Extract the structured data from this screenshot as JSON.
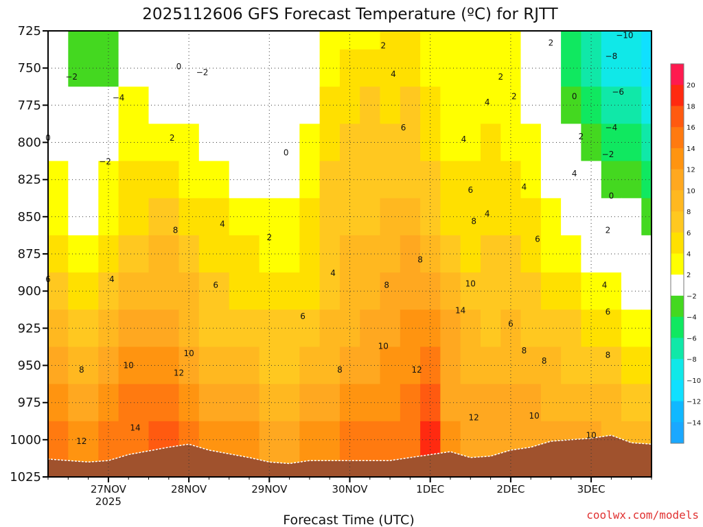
{
  "chart_data": {
    "type": "heatmap",
    "title": "2025112606 GFS Forecast Temperature (ºC) for RJTT",
    "xlabel": "Forecast Time (UTC)",
    "ylabel": "",
    "credit": "coolwx.com/models",
    "y_levels": [
      725,
      750,
      775,
      800,
      825,
      850,
      875,
      900,
      925,
      950,
      975,
      1000,
      1025
    ],
    "ylim": [
      1025,
      725
    ],
    "x_ticks": [
      {
        "label": "27NOV",
        "sub": "2025",
        "hour": 18
      },
      {
        "label": "28NOV",
        "sub": "",
        "hour": 42
      },
      {
        "label": "29NOV",
        "sub": "",
        "hour": 66
      },
      {
        "label": "30NOV",
        "sub": "",
        "hour": 90
      },
      {
        "label": "1DEC",
        "sub": "",
        "hour": 114
      },
      {
        "label": "2DEC",
        "sub": "",
        "hour": 138
      },
      {
        "label": "3DEC",
        "sub": "",
        "hour": 162
      }
    ],
    "xlim_hours": [
      0,
      180
    ],
    "colorbar": {
      "labels": [
        "20",
        "18",
        "16",
        "14",
        "12",
        "10",
        "8",
        "6",
        "4",
        "2",
        "−2",
        "−4",
        "−6",
        "−8",
        "−10",
        "−12",
        "−14"
      ],
      "colors": [
        "#ff1a4f",
        "#ff2a10",
        "#ff5a10",
        "#ff7a10",
        "#ff9410",
        "#ffa820",
        "#ffb820",
        "#ffc820",
        "#ffe000",
        "#ffff00",
        "#ffffff",
        "#44d820",
        "#10e860",
        "#10e8a8",
        "#10e8e8",
        "#10e0ff",
        "#10b8ff",
        "#1aa8ff"
      ]
    },
    "x_hours": [
      0,
      12,
      18,
      24,
      36,
      42,
      48,
      60,
      66,
      72,
      78,
      84,
      90,
      96,
      102,
      108,
      114,
      120,
      126,
      132,
      138,
      144,
      150,
      156,
      162,
      168,
      174,
      180
    ],
    "surface_pressure": [
      1013,
      1015,
      1014,
      1010,
      1005,
      1003,
      1007,
      1012,
      1015,
      1016,
      1014,
      1014,
      1014,
      1014,
      1014,
      1012,
      1010,
      1008,
      1012,
      1011,
      1007,
      1005,
      1001,
      1000,
      999,
      997,
      1002,
      1003
    ],
    "temperature": [
      [
        -2,
        -4,
        -4,
        0,
        -2,
        -2,
        -2,
        -2,
        -2,
        -2,
        0,
        2,
        2,
        2,
        4,
        4,
        2,
        2,
        2,
        2,
        2,
        0,
        -2,
        -6,
        -8,
        -10,
        -10,
        -12
      ],
      [
        -2,
        -4,
        -4,
        0,
        -2,
        0,
        -2,
        -2,
        -2,
        -2,
        0,
        2,
        4,
        4,
        4,
        4,
        2,
        2,
        2,
        2,
        2,
        0,
        -2,
        -6,
        -8,
        -10,
        -10,
        -12
      ],
      [
        0,
        -2,
        -2,
        2,
        0,
        0,
        -2,
        -2,
        -2,
        -2,
        0,
        4,
        4,
        6,
        4,
        6,
        4,
        2,
        2,
        2,
        2,
        0,
        -2,
        -4,
        -6,
        -8,
        -8,
        -10
      ],
      [
        0,
        -2,
        0,
        2,
        2,
        2,
        0,
        0,
        0,
        0,
        2,
        4,
        6,
        6,
        6,
        6,
        4,
        2,
        2,
        4,
        2,
        2,
        0,
        -2,
        -4,
        -6,
        -6,
        -8
      ],
      [
        2,
        0,
        2,
        4,
        4,
        2,
        2,
        0,
        0,
        0,
        2,
        6,
        6,
        6,
        6,
        6,
        6,
        4,
        4,
        4,
        4,
        2,
        0,
        0,
        -2,
        -4,
        -4,
        -6
      ],
      [
        2,
        0,
        2,
        4,
        6,
        4,
        4,
        2,
        2,
        2,
        4,
        6,
        6,
        6,
        8,
        8,
        6,
        4,
        4,
        4,
        4,
        4,
        2,
        0,
        0,
        -2,
        -2,
        -4
      ],
      [
        4,
        2,
        4,
        6,
        8,
        6,
        4,
        4,
        2,
        2,
        4,
        6,
        8,
        8,
        8,
        10,
        8,
        6,
        4,
        6,
        6,
        4,
        2,
        2,
        0,
        0,
        -2,
        -2
      ],
      [
        6,
        4,
        6,
        8,
        8,
        8,
        6,
        4,
        4,
        4,
        4,
        6,
        8,
        8,
        10,
        10,
        10,
        8,
        6,
        6,
        6,
        6,
        4,
        4,
        2,
        2,
        0,
        0
      ],
      [
        8,
        6,
        8,
        10,
        10,
        8,
        6,
        6,
        6,
        6,
        6,
        8,
        8,
        10,
        10,
        12,
        12,
        10,
        8,
        6,
        8,
        6,
        6,
        6,
        4,
        4,
        2,
        2
      ],
      [
        10,
        8,
        10,
        12,
        12,
        10,
        8,
        8,
        6,
        6,
        8,
        8,
        10,
        10,
        12,
        12,
        14,
        10,
        8,
        8,
        8,
        8,
        8,
        6,
        6,
        6,
        4,
        4
      ],
      [
        12,
        10,
        12,
        14,
        14,
        12,
        10,
        10,
        8,
        8,
        10,
        10,
        12,
        12,
        12,
        14,
        16,
        10,
        10,
        10,
        10,
        10,
        8,
        8,
        8,
        8,
        6,
        6
      ],
      [
        14,
        12,
        14,
        14,
        16,
        14,
        12,
        12,
        10,
        10,
        12,
        12,
        14,
        14,
        14,
        14,
        18,
        12,
        10,
        10,
        10,
        10,
        10,
        10,
        10,
        8,
        8,
        8
      ],
      [
        14,
        12,
        14,
        14,
        16,
        14,
        12,
        12,
        10,
        10,
        12,
        12,
        14,
        14,
        14,
        14,
        18,
        12,
        10,
        10,
        10,
        10,
        10,
        10,
        10,
        8,
        8,
        8
      ]
    ],
    "contour_labels": [
      {
        "text": "2",
        "hour": 100,
        "p": 735
      },
      {
        "text": "2",
        "hour": 150,
        "p": 733
      },
      {
        "text": "-10",
        "hour": 172,
        "p": 728
      },
      {
        "text": "2",
        "hour": 135,
        "p": 756
      },
      {
        "text": "-2",
        "hour": 7,
        "p": 756
      },
      {
        "text": "-4",
        "hour": 21,
        "p": 770
      },
      {
        "text": "0",
        "hour": 39,
        "p": 749
      },
      {
        "text": "-2",
        "hour": 46,
        "p": 753
      },
      {
        "text": "4",
        "hour": 103,
        "p": 754
      },
      {
        "text": "2",
        "hour": 139,
        "p": 769
      },
      {
        "text": "0",
        "hour": 157,
        "p": 769
      },
      {
        "text": "-8",
        "hour": 168,
        "p": 742
      },
      {
        "text": "-6",
        "hour": 170,
        "p": 766
      },
      {
        "text": "4",
        "hour": 131,
        "p": 773
      },
      {
        "text": "-4",
        "hour": 168,
        "p": 790
      },
      {
        "text": "6",
        "hour": 106,
        "p": 790
      },
      {
        "text": "0",
        "hour": 0,
        "p": 797
      },
      {
        "text": "2",
        "hour": 37,
        "p": 797
      },
      {
        "text": "4",
        "hour": 124,
        "p": 798
      },
      {
        "text": "2",
        "hour": 159,
        "p": 796
      },
      {
        "text": "-2",
        "hour": 17,
        "p": 813
      },
      {
        "text": "0",
        "hour": 71,
        "p": 807
      },
      {
        "text": "-2",
        "hour": 167,
        "p": 808
      },
      {
        "text": "4",
        "hour": 157,
        "p": 821
      },
      {
        "text": "4",
        "hour": 142,
        "p": 830
      },
      {
        "text": "6",
        "hour": 126,
        "p": 832
      },
      {
        "text": "0",
        "hour": 168,
        "p": 836
      },
      {
        "text": "4",
        "hour": 52,
        "p": 855
      },
      {
        "text": "8",
        "hour": 38,
        "p": 859
      },
      {
        "text": "8",
        "hour": 127,
        "p": 853
      },
      {
        "text": "4",
        "hour": 131,
        "p": 848
      },
      {
        "text": "2",
        "hour": 167,
        "p": 859
      },
      {
        "text": "2",
        "hour": 66,
        "p": 864
      },
      {
        "text": "6",
        "hour": 146,
        "p": 865
      },
      {
        "text": "8",
        "hour": 111,
        "p": 879
      },
      {
        "text": "4",
        "hour": 85,
        "p": 888
      },
      {
        "text": "6",
        "hour": 0,
        "p": 892
      },
      {
        "text": "4",
        "hour": 19,
        "p": 892
      },
      {
        "text": "6",
        "hour": 50,
        "p": 896
      },
      {
        "text": "8",
        "hour": 101,
        "p": 896
      },
      {
        "text": "10",
        "hour": 126,
        "p": 895
      },
      {
        "text": "4",
        "hour": 166,
        "p": 896
      },
      {
        "text": "14",
        "hour": 123,
        "p": 913
      },
      {
        "text": "6",
        "hour": 76,
        "p": 917
      },
      {
        "text": "6",
        "hour": 167,
        "p": 914
      },
      {
        "text": "6",
        "hour": 138,
        "p": 922
      },
      {
        "text": "10",
        "hour": 100,
        "p": 937
      },
      {
        "text": "10",
        "hour": 42,
        "p": 942
      },
      {
        "text": "8",
        "hour": 142,
        "p": 940
      },
      {
        "text": "8",
        "hour": 167,
        "p": 943
      },
      {
        "text": "10",
        "hour": 24,
        "p": 950
      },
      {
        "text": "8",
        "hour": 10,
        "p": 953
      },
      {
        "text": "12",
        "hour": 39,
        "p": 955
      },
      {
        "text": "8",
        "hour": 87,
        "p": 953
      },
      {
        "text": "12",
        "hour": 110,
        "p": 953
      },
      {
        "text": "8",
        "hour": 148,
        "p": 947
      },
      {
        "text": "12",
        "hour": 127,
        "p": 985
      },
      {
        "text": "10",
        "hour": 145,
        "p": 984
      },
      {
        "text": "14",
        "hour": 26,
        "p": 992
      },
      {
        "text": "12",
        "hour": 10,
        "p": 1001
      },
      {
        "text": "10",
        "hour": 162,
        "p": 997
      }
    ]
  }
}
